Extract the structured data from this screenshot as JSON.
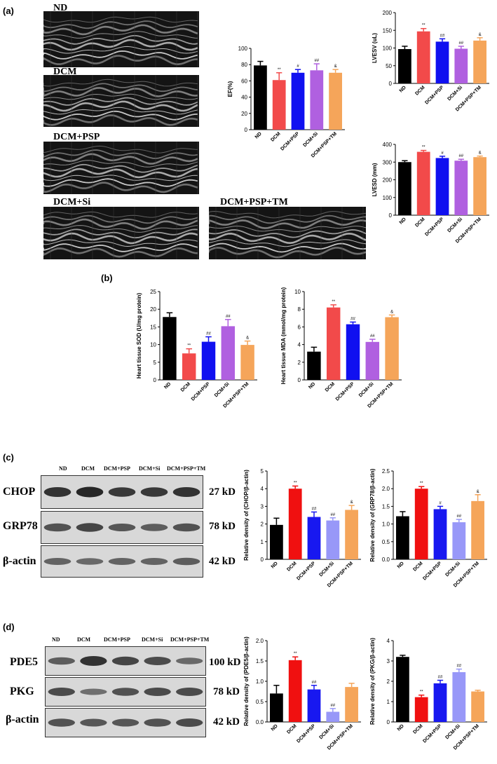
{
  "panels": {
    "a": "(a)",
    "b": "(b)",
    "c": "(c)",
    "d": "(d)"
  },
  "echo_labels": [
    "ND",
    "DCM",
    "DCM+PSP",
    "DCM+Si",
    "DCM+PSP+TM"
  ],
  "blot_c": {
    "lanes": [
      "ND",
      "DCM",
      "DCM+PSP",
      "DCM+Si",
      "DCM+PSP+TM"
    ],
    "proteins": [
      "CHOP",
      "GRP78",
      "β-actin"
    ],
    "weights": [
      "27 kD",
      "78 kD",
      "42 kD"
    ],
    "intensity": [
      [
        0.8,
        0.9,
        0.75,
        0.75,
        0.8
      ],
      [
        0.55,
        0.65,
        0.5,
        0.45,
        0.55
      ],
      [
        0.4,
        0.35,
        0.4,
        0.4,
        0.45
      ]
    ]
  },
  "blot_d": {
    "lanes": [
      "ND",
      "DCM",
      "DCM+PSP",
      "DCM+Si",
      "DCM+PSP+TM"
    ],
    "proteins": [
      "PDE5",
      "PKG",
      "β-actin"
    ],
    "weights": [
      "100 kD",
      "78 kD",
      "42 kD"
    ],
    "intensity": [
      [
        0.45,
        0.8,
        0.65,
        0.6,
        0.35
      ],
      [
        0.6,
        0.3,
        0.55,
        0.6,
        0.6
      ],
      [
        0.55,
        0.5,
        0.5,
        0.55,
        0.6
      ]
    ]
  },
  "colors": [
    "#000000",
    "#f24a4a",
    "#1010f0",
    "#b060e0",
    "#f5a55a"
  ],
  "colors_c": [
    "#000000",
    "#f01010",
    "#1818f0",
    "#9898f8",
    "#f5a55a"
  ],
  "chart_data": [
    {
      "id": "ef",
      "type": "bar",
      "categories": [
        "ND",
        "DCM",
        "DCM+PSP",
        "DCM+Si",
        "DCM+PSP+TM"
      ],
      "values": [
        79,
        61,
        70,
        73,
        70
      ],
      "errors": [
        5,
        9,
        4,
        8,
        4
      ],
      "marks": [
        "",
        "**",
        "#",
        "##",
        "&"
      ],
      "ylabel": "EF(%)",
      "ylim": [
        0,
        100
      ],
      "yticks": [
        0,
        20,
        40,
        60,
        80,
        100
      ]
    },
    {
      "id": "lvesv",
      "type": "bar",
      "categories": [
        "ND",
        "DCM",
        "DCM+PSP",
        "DCM+Si",
        "DCM+PSP+TM"
      ],
      "values": [
        97,
        147,
        118,
        98,
        121
      ],
      "errors": [
        8,
        8,
        8,
        7,
        8
      ],
      "marks": [
        "",
        "**",
        "##",
        "##",
        "&"
      ],
      "ylabel": "LVESV (uL)",
      "ylim": [
        0,
        200
      ],
      "yticks": [
        0,
        50,
        100,
        150,
        200
      ]
    },
    {
      "id": "lvesd",
      "type": "bar",
      "categories": [
        "ND",
        "DCM",
        "DCM+PSP",
        "DCM+Si",
        "DCM+PSP+TM"
      ],
      "values": [
        300,
        358,
        323,
        308,
        328
      ],
      "errors": [
        8,
        8,
        10,
        8,
        6
      ],
      "marks": [
        "",
        "**",
        "#",
        "##",
        "&"
      ],
      "ylabel": "LVESD (mm)",
      "ylim": [
        0,
        400
      ],
      "yticks": [
        0,
        100,
        200,
        300,
        400
      ]
    },
    {
      "id": "sod",
      "type": "bar",
      "categories": [
        "ND",
        "DCM",
        "DCM+PSP",
        "DCM+Si",
        "DCM+PSP+TM"
      ],
      "values": [
        17.8,
        7.5,
        10.8,
        15.2,
        9.9
      ],
      "errors": [
        1.2,
        1.3,
        1.4,
        1.9,
        1.1
      ],
      "marks": [
        "",
        "**",
        "##",
        "##",
        "&"
      ],
      "ylabel": "Heart tissue SOD (U/mg protein)",
      "ylim": [
        0,
        25
      ],
      "yticks": [
        0,
        5,
        10,
        15,
        20,
        25
      ]
    },
    {
      "id": "mda",
      "type": "bar",
      "categories": [
        "ND",
        "DCM",
        "DCM+PSP",
        "DCM+Si",
        "DCM+PSP+TM"
      ],
      "values": [
        3.2,
        8.2,
        6.3,
        4.3,
        7.1
      ],
      "errors": [
        0.5,
        0.3,
        0.25,
        0.3,
        0.25
      ],
      "marks": [
        "",
        "**",
        "##",
        "##",
        "&"
      ],
      "ylabel": "Heart tissue MDA (mmol/mg protein)",
      "ylim": [
        0,
        10
      ],
      "yticks": [
        0,
        2,
        4,
        6,
        8,
        10
      ]
    },
    {
      "id": "chop",
      "type": "bar",
      "categories": [
        "ND",
        "DCM",
        "DCM+PSP",
        "DCM+Si",
        "DCM+PSP+TM"
      ],
      "values": [
        1.95,
        4.0,
        2.4,
        2.2,
        2.8
      ],
      "errors": [
        0.38,
        0.15,
        0.28,
        0.15,
        0.25
      ],
      "marks": [
        "",
        "**",
        "##",
        "##",
        "&"
      ],
      "ylabel": "Relative density of (CHOP/β-actin)",
      "ylim": [
        0,
        5
      ],
      "yticks": [
        0,
        1,
        2,
        3,
        4,
        5
      ]
    },
    {
      "id": "grp78",
      "type": "bar",
      "categories": [
        "ND",
        "DCM",
        "DCM+PSP",
        "DCM+Si",
        "DCM+PSP+TM"
      ],
      "values": [
        1.22,
        2.0,
        1.42,
        1.05,
        1.65
      ],
      "errors": [
        0.13,
        0.06,
        0.08,
        0.08,
        0.18
      ],
      "marks": [
        "",
        "**",
        "#",
        "##",
        "&"
      ],
      "ylabel": "Relative density of (GRP78/β-actin)",
      "ylim": [
        0,
        2.5
      ],
      "yticks": [
        0.0,
        0.5,
        1.0,
        1.5,
        2.0,
        2.5
      ]
    },
    {
      "id": "pde5",
      "type": "bar",
      "categories": [
        "ND",
        "DCM",
        "DCM+PSP",
        "DCM+Si",
        "DCM+PSP+TM"
      ],
      "values": [
        0.7,
        1.52,
        0.8,
        0.25,
        0.86
      ],
      "errors": [
        0.2,
        0.08,
        0.1,
        0.08,
        0.09
      ],
      "marks": [
        "",
        "**",
        "##",
        "##",
        ""
      ],
      "ylabel": "Relative density of (PDE5/β-actin)",
      "ylim": [
        0,
        2.0
      ],
      "yticks": [
        0.0,
        0.5,
        1.0,
        1.5,
        2.0
      ]
    },
    {
      "id": "pkg",
      "type": "bar",
      "categories": [
        "ND",
        "DCM",
        "DCM+PSP",
        "DCM+Si",
        "DCM+PSP+TM"
      ],
      "values": [
        3.2,
        1.22,
        1.9,
        2.45,
        1.5
      ],
      "errors": [
        0.08,
        0.1,
        0.15,
        0.15,
        0.06
      ],
      "marks": [
        "",
        "**",
        "##",
        "##",
        ""
      ],
      "ylabel": "Relative density of (PKG/β-actin)",
      "ylim": [
        0,
        4
      ],
      "yticks": [
        0,
        1,
        2,
        3,
        4
      ]
    }
  ]
}
